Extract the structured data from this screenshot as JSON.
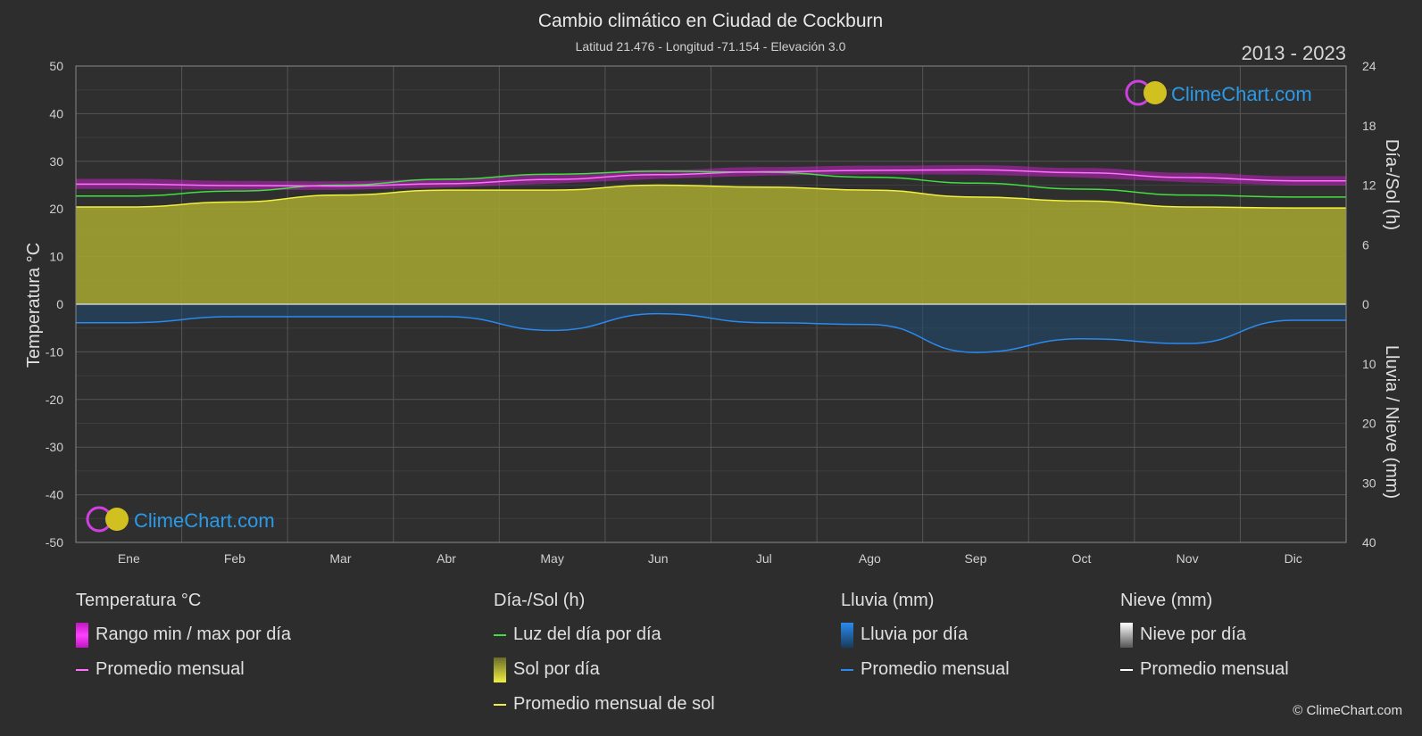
{
  "title": "Cambio climático en Ciudad de Cockburn",
  "subtitle": "Latitud 21.476 - Longitud -71.154 - Elevación 3.0",
  "year_range": "2013 - 2023",
  "brand": "ClimeChart.com",
  "copyright": "© ClimeChart.com",
  "colors": {
    "background": "#2d2d2d",
    "temp_range": "#e020e0",
    "temp_avg": "#ff70ff",
    "daylight": "#40e040",
    "sun_fill": "#a8a830",
    "sun_avg": "#f0f040",
    "rain": "#2a6aa8",
    "rain_avg": "#2a8af0",
    "snow_avg": "#ffffff",
    "brand_text": "#2a9ae8"
  },
  "legend": {
    "temp": {
      "title": "Temperatura °C",
      "range": "Rango min / max por día",
      "avg": "Promedio mensual"
    },
    "sun": {
      "title": "Día-/Sol (h)",
      "daylight": "Luz del día por día",
      "sun": "Sol por día",
      "sun_avg": "Promedio mensual de sol"
    },
    "rain": {
      "title": "Lluvia (mm)",
      "rain": "Lluvia por día",
      "avg": "Promedio mensual"
    },
    "snow": {
      "title": "Nieve (mm)",
      "snow": "Nieve por día",
      "avg": "Promedio mensual"
    }
  },
  "chart_data": {
    "type": "line",
    "categories": [
      "Ene",
      "Feb",
      "Mar",
      "Abr",
      "May",
      "Jun",
      "Jul",
      "Ago",
      "Sep",
      "Oct",
      "Nov",
      "Dic"
    ],
    "y_left": {
      "label": "Temperatura °C",
      "range": [
        -50,
        50
      ],
      "ticks": [
        50,
        40,
        30,
        20,
        10,
        0,
        -10,
        -20,
        -30,
        -40,
        -50
      ]
    },
    "y_right_top": {
      "label": "Día-/Sol (h)",
      "range": [
        0,
        24
      ],
      "ticks": [
        24,
        18,
        12,
        6,
        0
      ]
    },
    "y_right_bottom": {
      "label": "Lluvia / Nieve (mm)",
      "range": [
        0,
        40
      ],
      "ticks": [
        10,
        20,
        30,
        40
      ]
    },
    "grid": true,
    "series": [
      {
        "name": "Promedio mensual",
        "axis": "temperature",
        "values": [
          25.2,
          24.9,
          24.8,
          25.3,
          26.2,
          27.2,
          27.8,
          28.1,
          28.2,
          27.6,
          26.6,
          25.9
        ]
      },
      {
        "name": "Rango min / max por día",
        "axis": "temperature",
        "min": [
          24.2,
          24.0,
          24.0,
          24.5,
          25.3,
          26.3,
          27.0,
          27.3,
          27.2,
          26.6,
          25.6,
          24.9
        ],
        "max": [
          26.3,
          25.9,
          25.8,
          26.3,
          27.2,
          28.2,
          28.8,
          29.1,
          29.2,
          28.6,
          27.6,
          26.9
        ]
      },
      {
        "name": "Luz del día por día",
        "axis": "daylight_hours",
        "values": [
          10.9,
          11.4,
          12.0,
          12.6,
          13.1,
          13.4,
          13.3,
          12.8,
          12.2,
          11.6,
          11.0,
          10.8
        ]
      },
      {
        "name": "Promedio mensual de sol",
        "axis": "daylight_hours",
        "values": [
          9.8,
          10.3,
          11.0,
          11.5,
          11.5,
          12.0,
          11.8,
          11.5,
          10.8,
          10.4,
          9.8,
          9.7
        ]
      },
      {
        "name": "Promedio mensual",
        "axis": "rain_mm",
        "values": [
          3.1,
          2.1,
          2.1,
          2.1,
          4.4,
          1.6,
          3.1,
          3.4,
          8.1,
          5.8,
          6.6,
          2.7
        ]
      }
    ]
  }
}
